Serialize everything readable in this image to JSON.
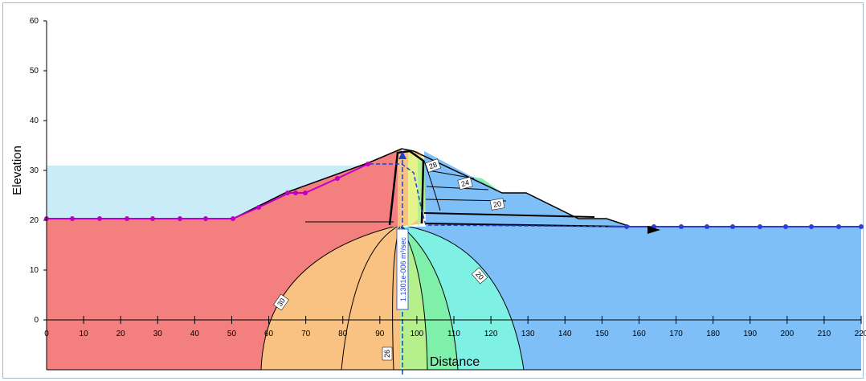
{
  "chart_data": {
    "type": "contour",
    "xlabel": "Distance",
    "ylabel": "Elevation",
    "xlim": [
      0,
      220
    ],
    "ylim": [
      0,
      60
    ],
    "x_ticks": [
      "0",
      "10",
      "20",
      "30",
      "40",
      "50",
      "60",
      "70",
      "80",
      "90",
      "100",
      "110",
      "120",
      "130",
      "140",
      "150",
      "160",
      "170",
      "180",
      "190",
      "200",
      "210",
      "220"
    ],
    "y_ticks": [
      "0",
      "10",
      "20",
      "30",
      "40",
      "50",
      "60"
    ],
    "reservoir_elevation": 31,
    "tailwater_elevation": 18.5,
    "contour_labels": [
      "30",
      "28",
      "26",
      "24",
      "20",
      "20"
    ],
    "flux_label": "1.1301e-006 m³/sec",
    "colors": {
      "head_30_plus": "#f47f7f",
      "head_28": "#f9c283",
      "head_26": "#e8f28a",
      "head_24": "#b6f08c",
      "head_22": "#7ff0a9",
      "head_21": "#7ff0e4",
      "head_20_minus": "#7fbff7",
      "reservoir": "#c9ecf8",
      "upstream_boundary": "#c000c0",
      "downstream_boundary": "#2a3fd6"
    }
  }
}
